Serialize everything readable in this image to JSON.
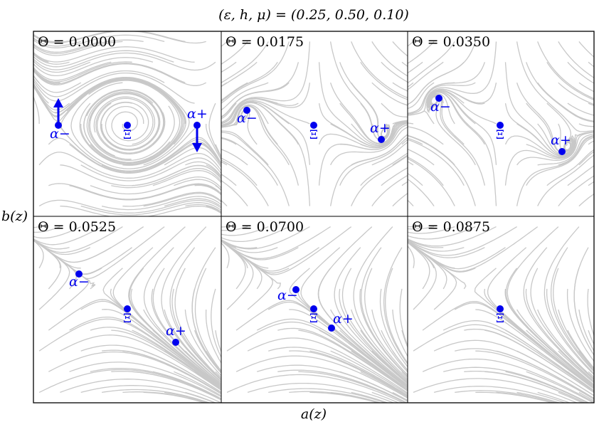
{
  "figure": {
    "title": "(ε, h, μ) = (0.25, 0.50, 0.10)",
    "xlabel": "a(z)",
    "ylabel": "b(z)",
    "colors": {
      "streamline": "#c8c8c8",
      "point": "#0000ee",
      "frame": "#000000"
    }
  },
  "panels": [
    {
      "label": "Θ = 0.0000",
      "points": [
        {
          "name": "α−",
          "label": "α−"
        },
        {
          "name": "Ξ",
          "label": "Ξ"
        },
        {
          "name": "α+",
          "label": "α+"
        }
      ],
      "arrows": [
        {
          "point": "α−",
          "direction": "up"
        },
        {
          "point": "α+",
          "direction": "down"
        }
      ]
    },
    {
      "label": "Θ = 0.0175",
      "points": [
        {
          "name": "α−",
          "label": "α−"
        },
        {
          "name": "Ξ",
          "label": "Ξ"
        },
        {
          "name": "α+",
          "label": "α+"
        }
      ]
    },
    {
      "label": "Θ = 0.0350",
      "points": [
        {
          "name": "α−",
          "label": "α−"
        },
        {
          "name": "Ξ",
          "label": "Ξ"
        },
        {
          "name": "α+",
          "label": "α+"
        }
      ]
    },
    {
      "label": "Θ = 0.0525",
      "points": [
        {
          "name": "α−",
          "label": "α−"
        },
        {
          "name": "Ξ",
          "label": "Ξ"
        },
        {
          "name": "α+",
          "label": "α+"
        }
      ]
    },
    {
      "label": "Θ = 0.0700",
      "points": [
        {
          "name": "α−",
          "label": "α−"
        },
        {
          "name": "Ξ",
          "label": "Ξ"
        },
        {
          "name": "α+",
          "label": "α+"
        }
      ]
    },
    {
      "label": "Θ = 0.0875",
      "points": [
        {
          "name": "Ξ",
          "label": "Ξ"
        }
      ]
    }
  ]
}
